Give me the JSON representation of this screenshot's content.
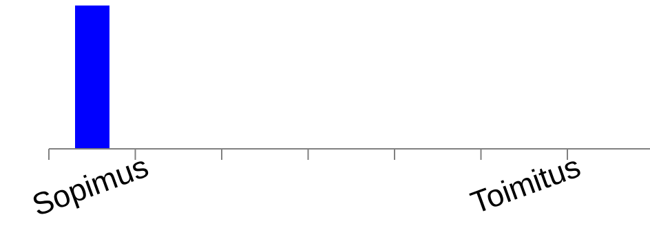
{
  "chart_data": {
    "type": "bar",
    "categories": [
      "Sopimus",
      "",
      "",
      "",
      "",
      "Toimitus",
      "",
      ""
    ],
    "values": [
      1,
      0,
      0,
      0,
      0,
      0,
      0,
      0
    ],
    "title": "",
    "xlabel": "",
    "ylabel": "",
    "ylim": [
      0,
      1
    ],
    "grid": false,
    "legend": "none",
    "colors": {
      "bar": "#0000ff",
      "axis": "#808080",
      "text": "#000000",
      "background": "#ffffff"
    }
  }
}
